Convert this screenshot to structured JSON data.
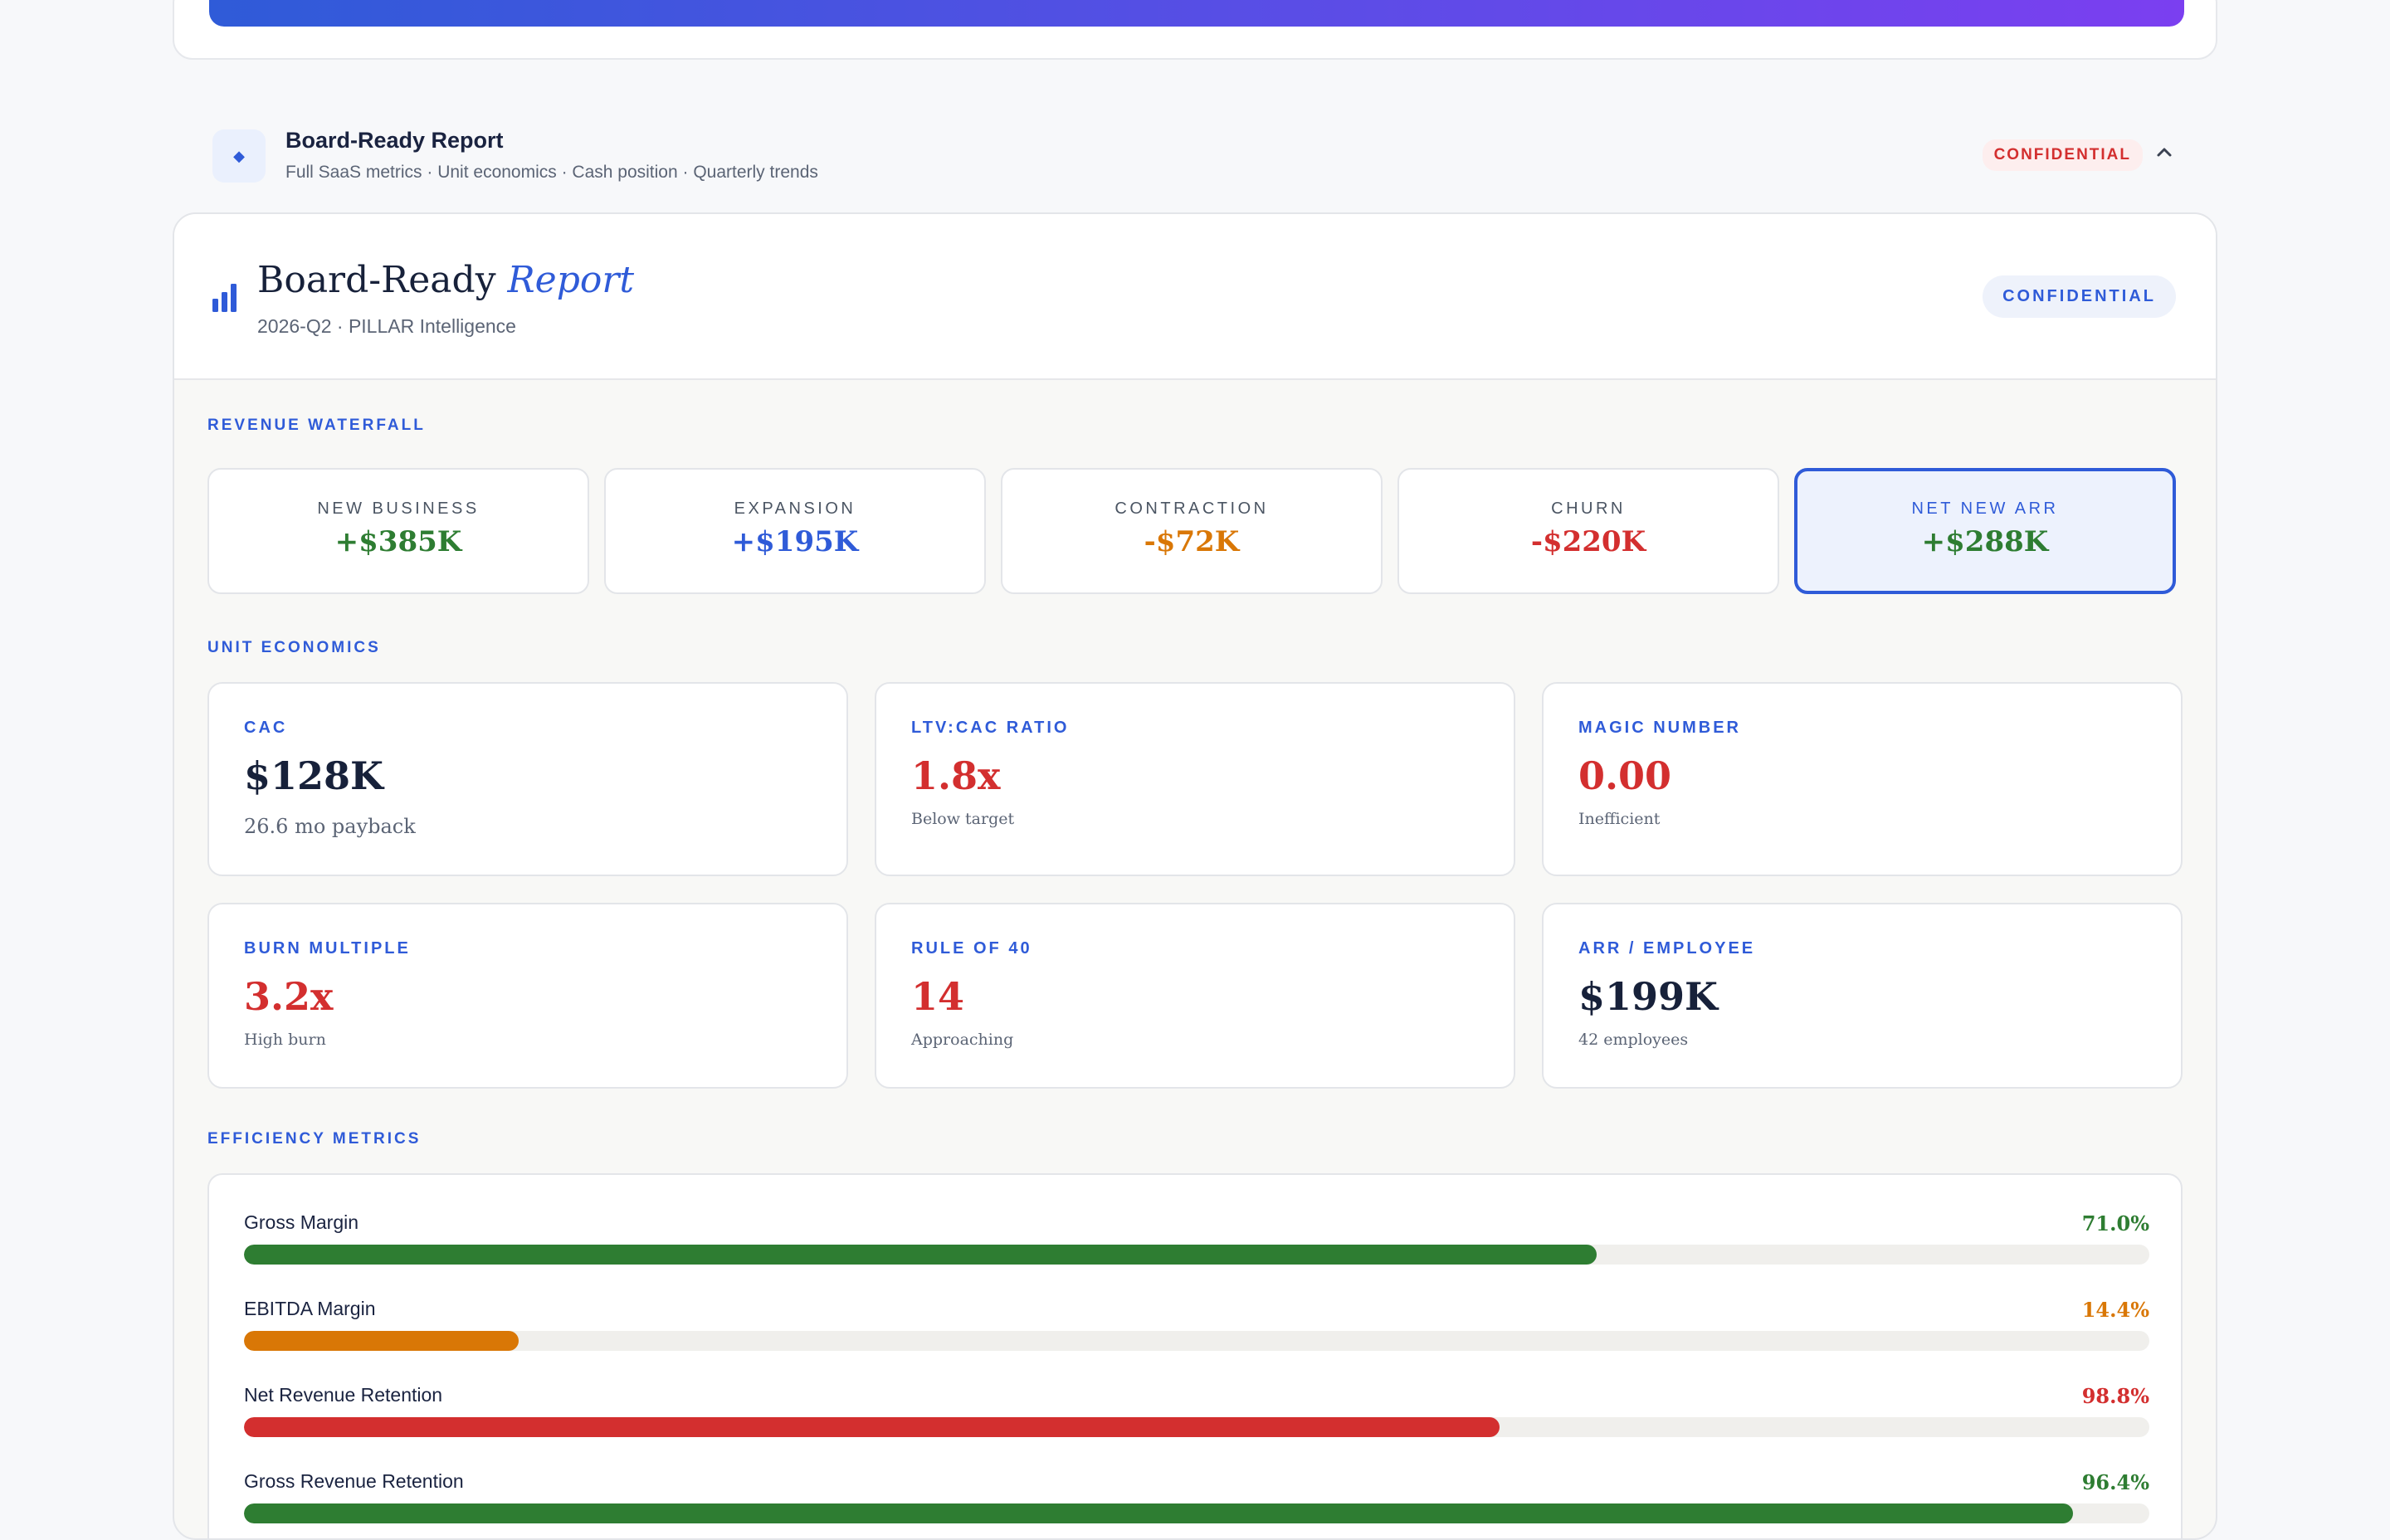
{
  "section": {
    "title": "Board-Ready Report",
    "subtitle": "Full SaaS metrics · Unit economics · Cash position · Quarterly trends",
    "badge": "CONFIDENTIAL",
    "icon": "diamond-icon"
  },
  "report": {
    "title_main": "Board-Ready",
    "title_accent": "Report",
    "subtitle": "2026-Q2 · PILLAR Intelligence",
    "badge": "CONFIDENTIAL"
  },
  "waterfall": {
    "heading": "REVENUE WATERFALL",
    "items": [
      {
        "label": "NEW BUSINESS",
        "value": "+$385K",
        "color": "#2e7d32"
      },
      {
        "label": "EXPANSION",
        "value": "+$195K",
        "color": "#2f5bd8"
      },
      {
        "label": "CONTRACTION",
        "value": "-$72K",
        "color": "#d97706"
      },
      {
        "label": "CHURN",
        "value": "-$220K",
        "color": "#d32f2f"
      },
      {
        "label": "NET NEW ARR",
        "value": "+$288K",
        "color": "#2e7d32"
      }
    ]
  },
  "unit_economics": {
    "heading": "UNIT ECONOMICS",
    "items": [
      {
        "label": "CAC",
        "value": "$128K",
        "note": "26.6 mo payback",
        "color": "#17213a"
      },
      {
        "label": "LTV:CAC RATIO",
        "value": "1.8x",
        "note": "Below target",
        "color": "#d32f2f"
      },
      {
        "label": "MAGIC NUMBER",
        "value": "0.00",
        "note": "Inefficient",
        "color": "#d32f2f"
      },
      {
        "label": "BURN MULTIPLE",
        "value": "3.2x",
        "note": "High burn",
        "color": "#d32f2f"
      },
      {
        "label": "RULE OF 40",
        "value": "14",
        "note": "Approaching",
        "color": "#d32f2f"
      },
      {
        "label": "ARR / EMPLOYEE",
        "value": "$199K",
        "note": "42 employees",
        "color": "#17213a"
      }
    ]
  },
  "efficiency": {
    "heading": "EFFICIENCY METRICS",
    "items": [
      {
        "label": "Gross Margin",
        "value": "71.0%",
        "fill": 0.71,
        "color": "#2e7d32"
      },
      {
        "label": "EBITDA Margin",
        "value": "14.4%",
        "fill": 0.144,
        "color": "#d97706"
      },
      {
        "label": "Net Revenue Retention",
        "value": "98.8%",
        "fill": 0.659,
        "color": "#d32f2f"
      },
      {
        "label": "Gross Revenue Retention",
        "value": "96.4%",
        "fill": 0.96,
        "color": "#2e7d32"
      }
    ]
  }
}
